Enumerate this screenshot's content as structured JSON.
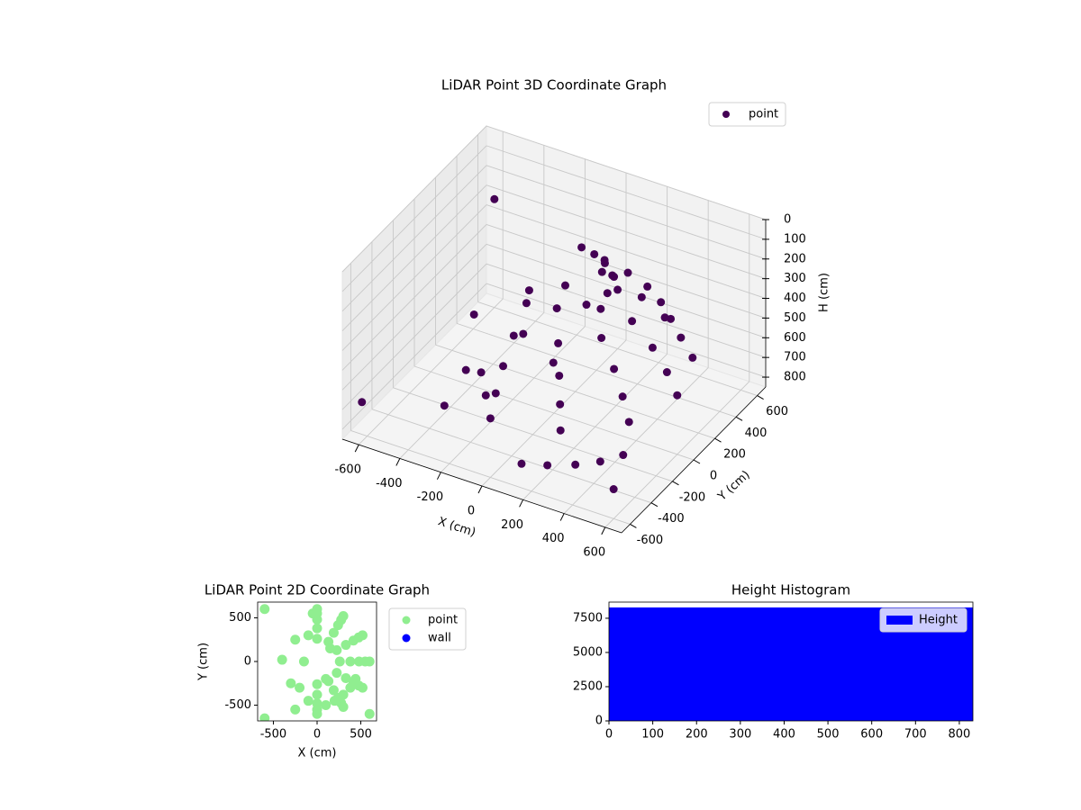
{
  "chart_data": [
    {
      "type": "scatter3d",
      "title": "LiDAR Point 3D Coordinate Graph",
      "xlabel": "X (cm)",
      "ylabel": "Y (cm)",
      "zlabel": "H (cm)",
      "xlim": [
        -680,
        680
      ],
      "ylim": [
        -680,
        680
      ],
      "zlim": [
        850,
        0
      ],
      "xticks": [
        -600,
        -400,
        -200,
        0,
        200,
        400,
        600
      ],
      "yticks": [
        -600,
        -400,
        -200,
        0,
        200,
        400,
        600
      ],
      "zticks": [
        0,
        100,
        200,
        300,
        400,
        500,
        600,
        700,
        800
      ],
      "grid": true,
      "legend": "upper right",
      "series": [
        {
          "name": "point",
          "color": "#440154",
          "x": [
            0,
            300,
            520,
            600,
            520,
            300,
            0,
            0,
            275,
            476,
            550,
            476,
            275,
            0,
            0,
            240,
            416,
            480,
            416,
            240,
            0,
            0,
            190,
            329,
            380,
            329,
            190,
            0,
            0,
            130,
            225,
            260,
            225,
            130,
            0,
            -250,
            -200,
            -150,
            -250,
            -100,
            -300,
            -100,
            100,
            150,
            -50,
            -600,
            -600,
            600,
            -400,
            100,
            200,
            300,
            380,
            440
          ],
          "y": [
            -600,
            -520,
            -300,
            0,
            300,
            520,
            600,
            -550,
            -476,
            -275,
            0,
            275,
            476,
            550,
            -480,
            -416,
            -240,
            0,
            240,
            416,
            480,
            -380,
            -329,
            -190,
            0,
            190,
            329,
            380,
            -260,
            -225,
            -130,
            0,
            130,
            225,
            260,
            -550,
            -300,
            0,
            250,
            300,
            -250,
            -450,
            -200,
            150,
            550,
            600,
            -650,
            -600,
            20,
            -500,
            -450,
            -380,
            -300,
            -200
          ],
          "z": [
            550,
            550,
            550,
            550,
            550,
            550,
            550,
            450,
            450,
            450,
            450,
            450,
            450,
            450,
            350,
            350,
            350,
            350,
            350,
            350,
            350,
            250,
            250,
            250,
            250,
            250,
            250,
            250,
            150,
            150,
            150,
            150,
            150,
            150,
            150,
            600,
            550,
            500,
            450,
            400,
            600,
            550,
            450,
            350,
            450,
            300,
            650,
            700,
            500,
            800,
            800,
            800,
            800,
            800
          ]
        }
      ]
    },
    {
      "type": "scatter",
      "title": "LiDAR Point 2D Coordinate Graph",
      "xlabel": "X (cm)",
      "ylabel": "Y (cm)",
      "xlim": [
        -680,
        680
      ],
      "ylim": [
        -680,
        680
      ],
      "xticks": [
        -500,
        0,
        500
      ],
      "yticks": [
        -500,
        0,
        500
      ],
      "legend": "outside right",
      "series": [
        {
          "name": "point",
          "color": "#90ee90",
          "x": [
            0,
            300,
            520,
            600,
            520,
            300,
            0,
            0,
            275,
            476,
            550,
            476,
            275,
            0,
            0,
            240,
            416,
            480,
            416,
            240,
            0,
            0,
            190,
            329,
            380,
            329,
            190,
            0,
            0,
            130,
            225,
            260,
            225,
            130,
            0,
            -250,
            -200,
            -150,
            -250,
            -100,
            -300,
            -100,
            100,
            150,
            -50,
            -600,
            -600,
            600,
            -400,
            100,
            200,
            300,
            380,
            440
          ],
          "y": [
            -600,
            -520,
            -300,
            0,
            300,
            520,
            600,
            -550,
            -476,
            -275,
            0,
            275,
            476,
            550,
            -480,
            -416,
            -240,
            0,
            240,
            416,
            480,
            -380,
            -329,
            -190,
            0,
            190,
            329,
            380,
            -260,
            -225,
            -130,
            0,
            130,
            225,
            260,
            -550,
            -300,
            0,
            250,
            300,
            -250,
            -450,
            -200,
            150,
            550,
            600,
            -650,
            -600,
            20,
            -500,
            -450,
            -380,
            -300,
            -200
          ]
        },
        {
          "name": "wall",
          "color": "#0000ff",
          "x": [],
          "y": []
        }
      ]
    },
    {
      "type": "histogram",
      "title": "Height Histogram",
      "bins": [
        0,
        831
      ],
      "counts": [
        8290
      ],
      "name": "Height",
      "color": "#0000ff",
      "xlim": [
        0,
        831
      ],
      "ylim": [
        0,
        8680
      ],
      "xticks": [
        0,
        100,
        200,
        300,
        400,
        500,
        600,
        700,
        800
      ],
      "yticks": [
        0,
        2500,
        5000,
        7500
      ],
      "legend": "upper right"
    }
  ]
}
